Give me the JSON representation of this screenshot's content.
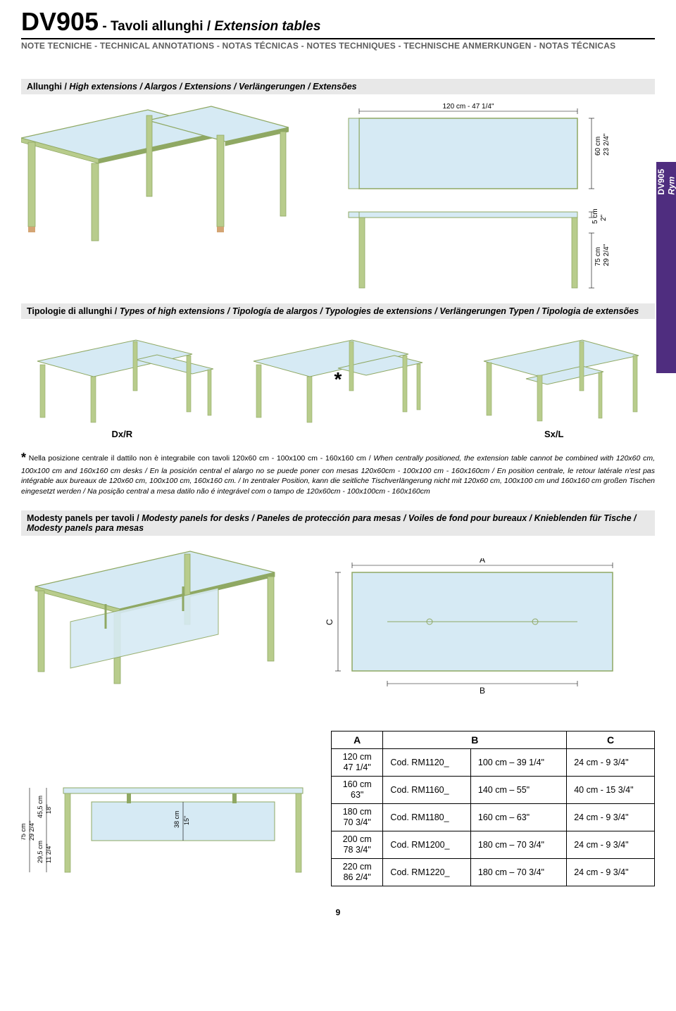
{
  "header": {
    "code": "DV905",
    "dash": " - ",
    "title_plain": "Tavoli allunghi / ",
    "title_italic": "Extension tables",
    "notes": "NOTE TECNICHE - TECHNICAL ANNOTATIONS - NOTAS TÉCNICAS - NOTES TECHNIQUES - TECHNISCHE ANMERKUNGEN - NOTAS TÉCNICAS"
  },
  "side_tab": {
    "line1": "DV905",
    "line2": "Rym"
  },
  "section1": {
    "hdr_plain": "Allunghi / ",
    "hdr_italic": "High extensions / Alargos / Extensions / Verlängerungen / Extensões",
    "dim_w": "120 cm - 47 1/4\"",
    "dim_h1": "60 cm",
    "dim_h1b": "23 2/4\"",
    "dim_h2": "5 cm",
    "dim_h2b": "2\"",
    "dim_h3": "75 cm",
    "dim_h3b": "29 2/4\""
  },
  "section2": {
    "hdr_plain": "Tipologie di allunghi / ",
    "hdr_italic": "Types of high extensions / Tipología de alargos / Typologies de extensions / Verlängerungen Typen / Tipologia de extensões",
    "left_label": "Dx/R",
    "right_label": "Sx/L",
    "star": "*"
  },
  "footnote": {
    "star": "*",
    "t1": "Nella posizione centrale il dattilo non è integrabile con tavoli 120x60 cm - 100x100 cm - 160x160 cm / ",
    "t1_it": "When centrally positioned, the extension table cannot be combined with 120x60 cm, 100x100 cm and 160x160 cm desks / En la posición central el alargo no se puede poner con mesas 120x60cm - 100x100 cm - 160x160cm / En position centrale, le retour latérale n'est pas intégrable aux bureaux de 120x60 cm, 100x100 cm, 160x160 cm. / In zentraler Position, kann die seitliche Tischverlängerung nicht mit 120x60 cm, 100x100 cm und 160x160 cm großen Tischen eingesetzt werden / Na posição central a mesa datilo não é integrável com o tampo de 120x60cm - 100x100cm - 160x160cm"
  },
  "section3": {
    "hdr_plain": "Modesty panels per tavoli / ",
    "hdr_italic": "Modesty panels for desks / Paneles de protección para mesas / Voiles de fond pour bureaux / Knieblenden für Tische / Modesty panels para mesas",
    "label_a": "A",
    "label_b": "B",
    "label_c": "C"
  },
  "front_dims": {
    "h_total_cm": "75 cm",
    "h_total_in": "29 2/4\"",
    "h_top_cm": "45,5 cm",
    "h_top_in": "18\"",
    "h_bot_cm": "29,5 cm",
    "h_bot_in": "11 2/4\"",
    "panel_cm": "38 cm",
    "panel_in": "15\""
  },
  "table": {
    "th_a": "A",
    "th_b": "B",
    "th_c": "C",
    "rows": [
      {
        "a1": "120 cm",
        "a2": "47 1/4\"",
        "code": "Cod. RM1120_",
        "b": "100 cm – 39 1/4\"",
        "c": "24 cm - 9 3/4\""
      },
      {
        "a1": "160 cm",
        "a2": "63\"",
        "code": "Cod. RM1160_",
        "b": "140 cm – 55\"",
        "c": "40 cm - 15 3/4\""
      },
      {
        "a1": "180 cm",
        "a2": "70 3/4\"",
        "code": "Cod. RM1180_",
        "b": "160 cm – 63\"",
        "c": "24 cm - 9 3/4\""
      },
      {
        "a1": "200 cm",
        "a2": "78 3/4\"",
        "code": "Cod. RM1200_",
        "b": "180 cm – 70 3/4\"",
        "c": "24 cm - 9 3/4\""
      },
      {
        "a1": "220 cm",
        "a2": "86 2/4\"",
        "code": "Cod. RM1220_",
        "b": "180 cm – 70 3/4\"",
        "c": "24 cm - 9 3/4\""
      }
    ]
  },
  "page_num": "9",
  "colors": {
    "glass": "#d6eaf4",
    "frame": "#b8cc8c",
    "frame_dark": "#8fa863",
    "wood": "#d4a574",
    "line": "#000000",
    "purple": "#4f2d7f",
    "grey_hdr": "#e8e8e8"
  }
}
